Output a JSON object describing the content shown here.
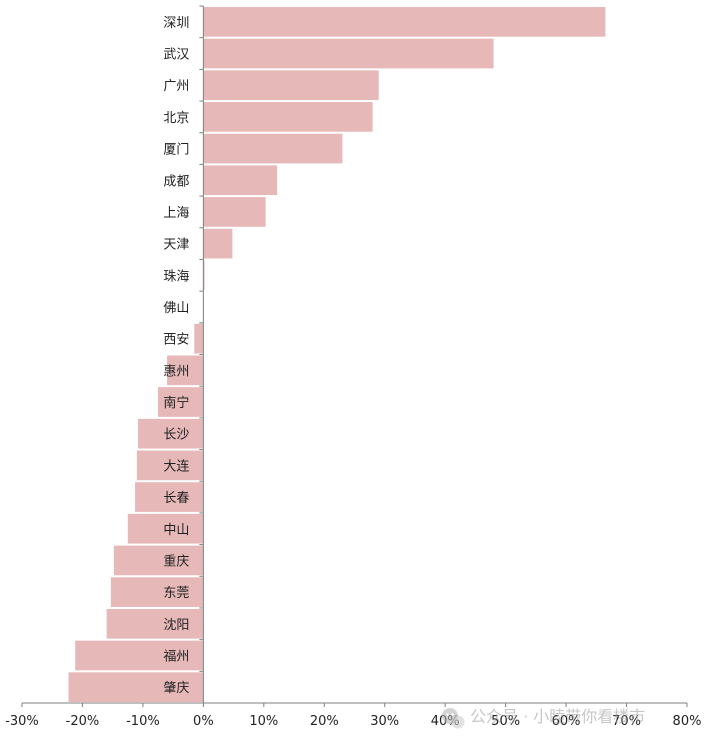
{
  "chart_data": {
    "type": "bar",
    "orientation": "horizontal",
    "categories": [
      "深圳",
      "武汉",
      "广州",
      "北京",
      "厦门",
      "成都",
      "上海",
      "天津",
      "珠海",
      "佛山",
      "西安",
      "惠州",
      "南宁",
      "长沙",
      "大连",
      "长春",
      "中山",
      "重庆",
      "东莞",
      "沈阳",
      "福州",
      "肇庆"
    ],
    "values": [
      66.5,
      48.0,
      29.0,
      28.0,
      23.0,
      12.2,
      10.3,
      4.8,
      0.2,
      0.0,
      -1.5,
      -6.0,
      -7.5,
      -10.8,
      -11.0,
      -11.3,
      -12.5,
      -14.8,
      -15.3,
      -16.0,
      -21.2,
      -22.3
    ],
    "xlim": [
      -30,
      80
    ],
    "xticks": [
      -30,
      -20,
      -10,
      0,
      10,
      20,
      30,
      40,
      50,
      60,
      70,
      80
    ],
    "tick_format": "percent",
    "bar_color": "#e6b8b8",
    "axis_color": "#7f7f7f",
    "title": "",
    "xlabel": "",
    "ylabel": ""
  },
  "watermark": {
    "text": "公众号 · 小睦带你看楼市",
    "icon": "wechat-icon"
  }
}
